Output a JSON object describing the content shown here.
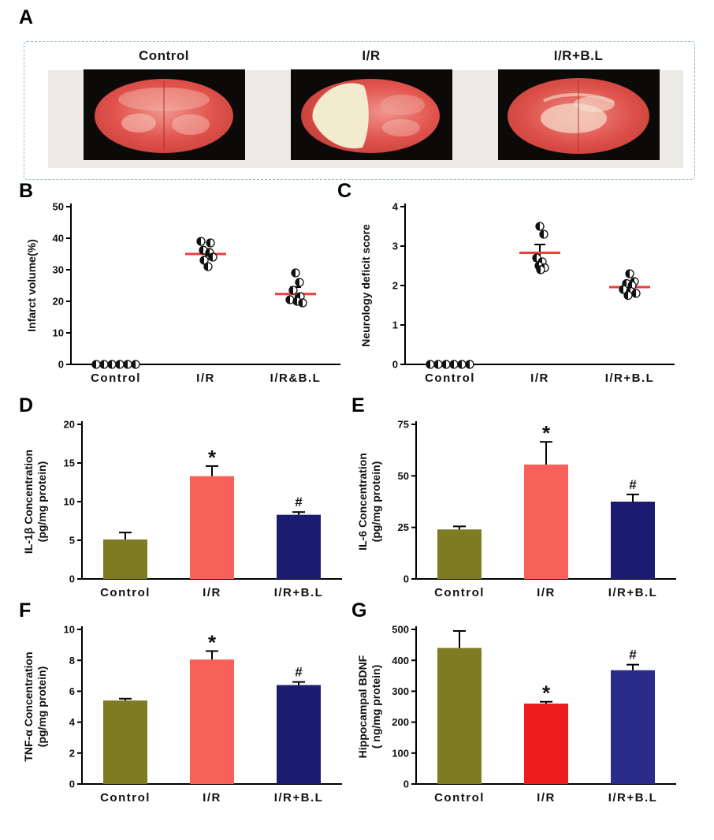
{
  "panel_a": {
    "label": "A",
    "images": [
      {
        "caption": "Control"
      },
      {
        "caption": "I/R"
      },
      {
        "caption": "I/R+B.L"
      }
    ]
  },
  "chart_data": [
    {
      "id": "B",
      "panel_label": "B",
      "type": "scatter",
      "ylabel": "Infarct volume(%)",
      "ylim": [
        0,
        50
      ],
      "yticks": [
        0,
        10,
        20,
        30,
        40,
        50
      ],
      "categories": [
        "Control",
        "I/R",
        "I/R&B.L"
      ],
      "mean_line_color": "#e8413c",
      "point_color": "#111111",
      "groups": [
        {
          "mean": null,
          "sem": null,
          "points": [
            [
              -25,
              0
            ],
            [
              -15,
              0
            ],
            [
              -5,
              0
            ],
            [
              5,
              0
            ],
            [
              15,
              0
            ],
            [
              25,
              0
            ]
          ]
        },
        {
          "mean": 35,
          "sem": 1.6,
          "points": [
            [
              -6,
              39
            ],
            [
              6,
              38.5
            ],
            [
              -3,
              36.2
            ],
            [
              5,
              35.4
            ],
            [
              9,
              34
            ],
            [
              -2,
              33
            ],
            [
              3,
              31
            ]
          ]
        },
        {
          "mean": 22.3,
          "sem": 2.2,
          "points": [
            [
              0,
              29
            ],
            [
              5,
              26
            ],
            [
              -3,
              23.5
            ],
            [
              6,
              21.5
            ],
            [
              -7,
              20.5
            ],
            [
              2,
              20
            ],
            [
              9,
              19.5
            ]
          ]
        }
      ]
    },
    {
      "id": "C",
      "panel_label": "C",
      "type": "scatter",
      "ylabel": "Neurology deficit score",
      "ylim": [
        0,
        4
      ],
      "yticks": [
        0,
        1,
        2,
        3,
        4
      ],
      "categories": [
        "Control",
        "I/R",
        "I/R+B.L"
      ],
      "mean_line_color": "#e8413c",
      "point_color": "#111111",
      "groups": [
        {
          "mean": null,
          "sem": null,
          "points": [
            [
              -25,
              0
            ],
            [
              -15,
              0
            ],
            [
              -5,
              0
            ],
            [
              5,
              0
            ],
            [
              15,
              0
            ],
            [
              25,
              0
            ]
          ]
        },
        {
          "mean": 2.83,
          "sem": 0.21,
          "points": [
            [
              0,
              3.5
            ],
            [
              5,
              3.3
            ],
            [
              -4,
              2.7
            ],
            [
              3,
              2.6
            ],
            [
              -1,
              2.5
            ],
            [
              6,
              2.45
            ],
            [
              1,
              2.4
            ]
          ]
        },
        {
          "mean": 1.96,
          "sem": 0.12,
          "points": [
            [
              0,
              2.3
            ],
            [
              6,
              2.1
            ],
            [
              -4,
              2.05
            ],
            [
              3,
              2.0
            ],
            [
              -8,
              1.9
            ],
            [
              1,
              1.85
            ],
            [
              8,
              1.8
            ],
            [
              -2,
              1.75
            ]
          ]
        }
      ]
    },
    {
      "id": "D",
      "panel_label": "D",
      "type": "bar",
      "ylabel_lines": [
        "IL-1β Concentration",
        "(pg/mg protein)"
      ],
      "ylim": [
        0,
        20
      ],
      "yticks": [
        0,
        5,
        10,
        15,
        20
      ],
      "categories": [
        "Control",
        "I/R",
        "I/R+B.L"
      ],
      "values": [
        5.1,
        13.3,
        8.3
      ],
      "errors": [
        0.9,
        1.3,
        0.35
      ],
      "sig": [
        "",
        "*",
        "#"
      ],
      "bar_colors": [
        "#7e7c22",
        "#f8615a",
        "#1b1b70"
      ]
    },
    {
      "id": "E",
      "panel_label": "E",
      "type": "bar",
      "ylabel_lines": [
        "IL-6 Concentration",
        "(pg/mg protein)"
      ],
      "ylim": [
        0,
        75
      ],
      "yticks": [
        0,
        25,
        50,
        75
      ],
      "categories": [
        "Control",
        "I/R",
        "I/R+B.L"
      ],
      "values": [
        24,
        55.5,
        37.5
      ],
      "errors": [
        1.5,
        11,
        3.5
      ],
      "sig": [
        "",
        "*",
        "#"
      ],
      "bar_colors": [
        "#7e7c22",
        "#f8615a",
        "#1b1b70"
      ]
    },
    {
      "id": "F",
      "panel_label": "F",
      "type": "bar",
      "ylabel_lines": [
        "TNF-α Concentration",
        "(pg/mg protein)"
      ],
      "ylim": [
        0,
        10
      ],
      "yticks": [
        0,
        2,
        4,
        6,
        8,
        10
      ],
      "categories": [
        "Control",
        "I/R",
        "I/R+B.L"
      ],
      "values": [
        5.4,
        8.05,
        6.4
      ],
      "errors": [
        0.12,
        0.55,
        0.2
      ],
      "sig": [
        "",
        "*",
        "#"
      ],
      "bar_colors": [
        "#7e7c22",
        "#f8615a",
        "#1b1b70"
      ]
    },
    {
      "id": "G",
      "panel_label": "G",
      "type": "bar",
      "ylabel_lines": [
        "Hippocampal BDNF",
        "( ng/mg protein)"
      ],
      "ylim": [
        0,
        500
      ],
      "yticks": [
        0,
        100,
        200,
        300,
        400,
        500
      ],
      "categories": [
        "Control",
        "I/R",
        "I/R+B.L"
      ],
      "values": [
        440,
        260,
        368
      ],
      "errors": [
        55,
        6,
        18
      ],
      "sig": [
        "",
        "*",
        "#"
      ],
      "bar_colors": [
        "#7e7c22",
        "#ee1c1c",
        "#2b2b8a"
      ]
    }
  ]
}
